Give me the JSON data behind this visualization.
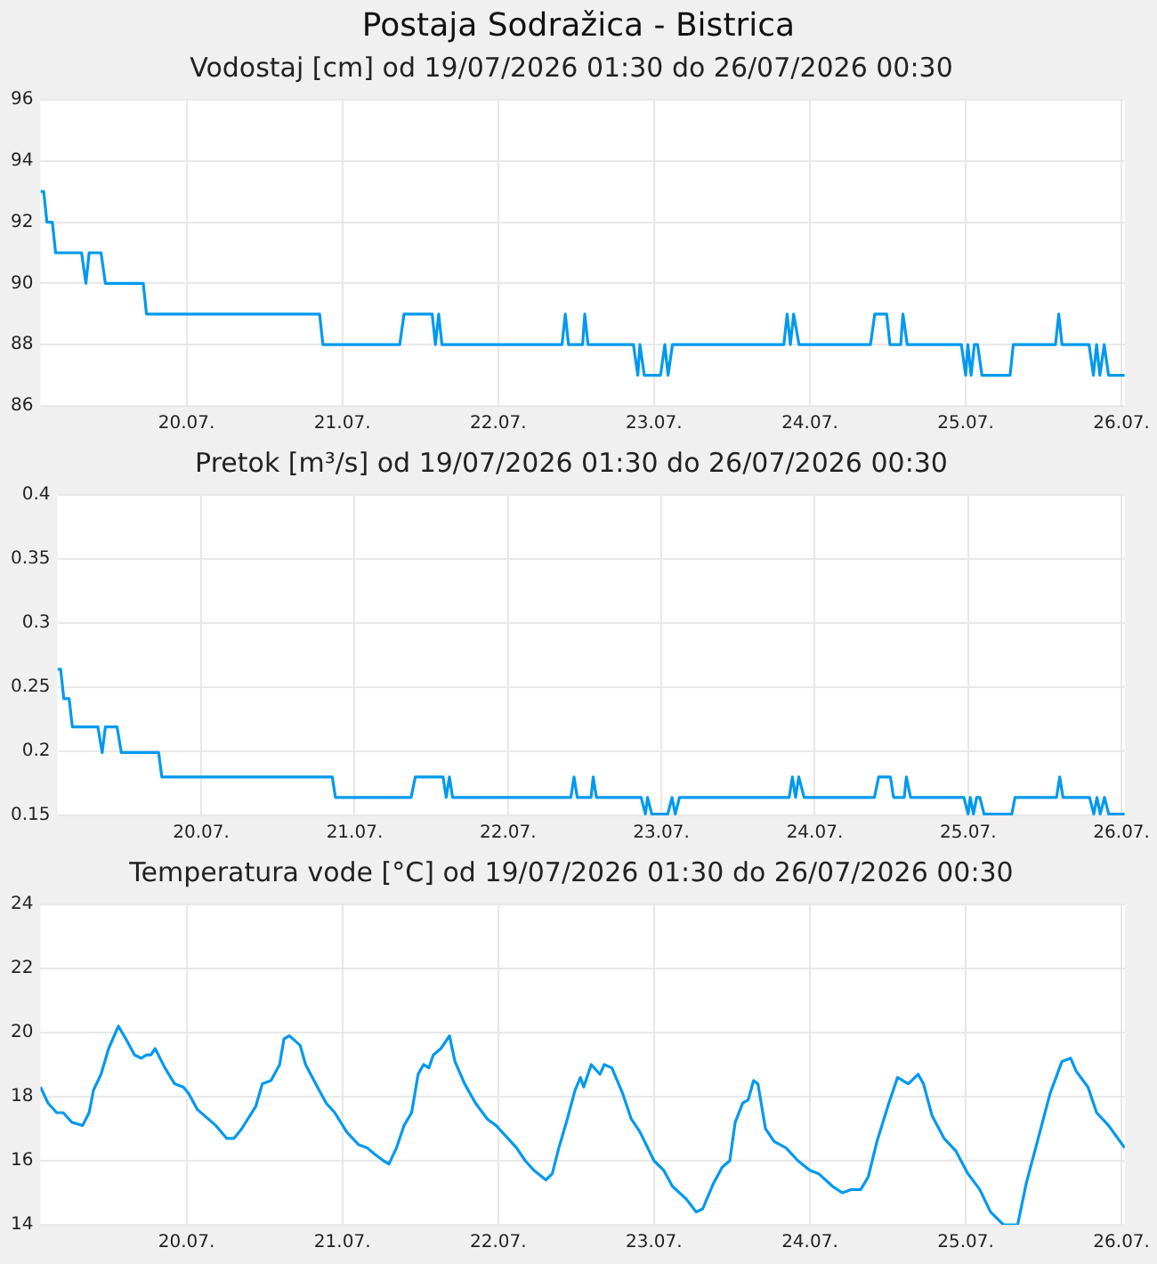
{
  "chart_data": [
    {
      "type": "line",
      "title": "Postaja Sodražica - Bistrica",
      "subtitle": "Vodostaj [cm] od 19/07/2026 01:30 do 26/07/2026 00:30",
      "color": "#0099ee",
      "grid": true,
      "marker": "none",
      "line_style": "solid",
      "x": [
        "2026-07-19T01:30",
        "2026-07-19T02:00",
        "2026-07-19T02:30",
        "2026-07-19T03:20",
        "2026-07-19T03:50",
        "2026-07-19T07:50",
        "2026-07-19T08:30",
        "2026-07-19T09:00",
        "2026-07-19T10:50",
        "2026-07-19T11:30",
        "2026-07-19T17:20",
        "2026-07-19T17:50",
        "2026-07-20T20:30",
        "2026-07-20T21:00",
        "2026-07-21T08:50",
        "2026-07-21T09:30",
        "2026-07-21T13:50",
        "2026-07-21T14:20",
        "2026-07-21T14:50",
        "2026-07-21T15:20",
        "2026-07-22T09:50",
        "2026-07-22T10:20",
        "2026-07-22T10:50",
        "2026-07-22T13:00",
        "2026-07-22T13:20",
        "2026-07-22T13:50",
        "2026-07-22T20:50",
        "2026-07-22T21:30",
        "2026-07-22T21:50",
        "2026-07-22T22:30",
        "2026-07-23T01:00",
        "2026-07-23T01:40",
        "2026-07-23T02:10",
        "2026-07-23T02:50",
        "2026-07-23T20:00",
        "2026-07-23T20:30",
        "2026-07-23T21:00",
        "2026-07-23T21:30",
        "2026-07-23T22:20",
        "2026-07-24T09:20",
        "2026-07-24T10:00",
        "2026-07-24T11:50",
        "2026-07-24T12:20",
        "2026-07-24T14:00",
        "2026-07-24T14:20",
        "2026-07-24T15:00",
        "2026-07-24T23:20",
        "2026-07-25T00:00",
        "2026-07-25T00:20",
        "2026-07-25T00:50",
        "2026-07-25T01:20",
        "2026-07-25T01:50",
        "2026-07-25T02:30",
        "2026-07-25T06:50",
        "2026-07-25T07:20",
        "2026-07-25T13:50",
        "2026-07-25T14:20",
        "2026-07-25T14:50",
        "2026-07-25T19:00",
        "2026-07-25T19:40",
        "2026-07-25T20:10",
        "2026-07-25T20:40",
        "2026-07-25T21:20",
        "2026-07-25T22:00",
        "2026-07-26T00:30"
      ],
      "values": [
        93,
        93,
        92,
        92,
        91,
        91,
        90,
        91,
        91,
        90,
        90,
        89,
        89,
        88,
        88,
        89,
        89,
        88,
        89,
        88,
        88,
        89,
        88,
        88,
        89,
        88,
        88,
        87,
        88,
        87,
        87,
        88,
        87,
        88,
        88,
        89,
        88,
        89,
        88,
        88,
        89,
        89,
        88,
        88,
        89,
        88,
        88,
        87,
        88,
        87,
        88,
        88,
        87,
        87,
        88,
        88,
        89,
        88,
        88,
        87,
        88,
        87,
        88,
        87,
        87
      ],
      "xlim": [
        "2026-07-19T01:30",
        "2026-07-26T00:30"
      ],
      "xticks": [
        {
          "value": "2026-07-20T00:00",
          "label": "20.07."
        },
        {
          "value": "2026-07-21T00:00",
          "label": "21.07."
        },
        {
          "value": "2026-07-22T00:00",
          "label": "22.07."
        },
        {
          "value": "2026-07-23T00:00",
          "label": "23.07."
        },
        {
          "value": "2026-07-24T00:00",
          "label": "24.07."
        },
        {
          "value": "2026-07-25T00:00",
          "label": "25.07."
        },
        {
          "value": "2026-07-26T00:00",
          "label": "26.07."
        }
      ],
      "ylim": [
        86,
        96
      ],
      "yticks": [
        86,
        88,
        90,
        92,
        94,
        96
      ]
    },
    {
      "type": "line",
      "title": "Pretok [m³/s] od 19/07/2026 01:30 do 26/07/2026 00:30",
      "color": "#0099ee",
      "grid": true,
      "marker": "none",
      "line_style": "solid",
      "x": [
        "2026-07-19T01:30",
        "2026-07-19T02:00",
        "2026-07-19T02:30",
        "2026-07-19T03:20",
        "2026-07-19T03:50",
        "2026-07-19T07:50",
        "2026-07-19T08:30",
        "2026-07-19T09:00",
        "2026-07-19T10:50",
        "2026-07-19T11:30",
        "2026-07-19T17:20",
        "2026-07-19T17:50",
        "2026-07-20T20:30",
        "2026-07-20T21:00",
        "2026-07-21T08:50",
        "2026-07-21T09:30",
        "2026-07-21T13:50",
        "2026-07-21T14:20",
        "2026-07-21T14:50",
        "2026-07-21T15:20",
        "2026-07-22T09:50",
        "2026-07-22T10:20",
        "2026-07-22T10:50",
        "2026-07-22T13:00",
        "2026-07-22T13:20",
        "2026-07-22T13:50",
        "2026-07-22T20:50",
        "2026-07-22T21:30",
        "2026-07-22T21:50",
        "2026-07-22T22:30",
        "2026-07-23T01:00",
        "2026-07-23T01:40",
        "2026-07-23T02:10",
        "2026-07-23T02:50",
        "2026-07-23T20:00",
        "2026-07-23T20:30",
        "2026-07-23T21:00",
        "2026-07-23T21:30",
        "2026-07-23T22:20",
        "2026-07-24T09:20",
        "2026-07-24T10:00",
        "2026-07-24T11:50",
        "2026-07-24T12:20",
        "2026-07-24T14:00",
        "2026-07-24T14:20",
        "2026-07-24T15:00",
        "2026-07-24T23:20",
        "2026-07-25T00:00",
        "2026-07-25T00:20",
        "2026-07-25T00:50",
        "2026-07-25T01:20",
        "2026-07-25T01:50",
        "2026-07-25T02:30",
        "2026-07-25T06:50",
        "2026-07-25T07:20",
        "2026-07-25T13:50",
        "2026-07-25T14:20",
        "2026-07-25T14:50",
        "2026-07-25T19:00",
        "2026-07-25T19:40",
        "2026-07-25T20:10",
        "2026-07-25T20:40",
        "2026-07-25T21:20",
        "2026-07-25T22:00",
        "2026-07-26T00:30"
      ],
      "values": [
        0.264,
        0.264,
        0.241,
        0.241,
        0.219,
        0.219,
        0.199,
        0.219,
        0.219,
        0.199,
        0.199,
        0.18,
        0.18,
        0.164,
        0.164,
        0.18,
        0.18,
        0.164,
        0.18,
        0.164,
        0.164,
        0.18,
        0.164,
        0.164,
        0.18,
        0.164,
        0.164,
        0.151,
        0.164,
        0.151,
        0.151,
        0.164,
        0.151,
        0.164,
        0.164,
        0.18,
        0.164,
        0.18,
        0.164,
        0.164,
        0.18,
        0.18,
        0.164,
        0.164,
        0.18,
        0.164,
        0.164,
        0.151,
        0.164,
        0.151,
        0.164,
        0.164,
        0.151,
        0.151,
        0.164,
        0.164,
        0.18,
        0.164,
        0.164,
        0.151,
        0.164,
        0.151,
        0.164,
        0.151,
        0.151
      ],
      "xlim": [
        "2026-07-19T01:30",
        "2026-07-26T00:30"
      ],
      "xticks": [
        {
          "value": "2026-07-20T00:00",
          "label": "20.07."
        },
        {
          "value": "2026-07-21T00:00",
          "label": "21.07."
        },
        {
          "value": "2026-07-22T00:00",
          "label": "22.07."
        },
        {
          "value": "2026-07-23T00:00",
          "label": "23.07."
        },
        {
          "value": "2026-07-24T00:00",
          "label": "24.07."
        },
        {
          "value": "2026-07-25T00:00",
          "label": "25.07."
        },
        {
          "value": "2026-07-26T00:00",
          "label": "26.07."
        }
      ],
      "ylim": [
        0.15,
        0.4
      ],
      "yticks": [
        0.15,
        0.2,
        0.25,
        0.3,
        0.35,
        0.4
      ]
    },
    {
      "type": "line",
      "title": "Temperatura vode [°C] od 19/07/2026 01:30 do 26/07/2026 00:30",
      "color": "#0099ee",
      "grid": true,
      "marker": "none",
      "line_style": "solid",
      "x": [
        "2026-07-19T01:30",
        "2026-07-19T02:40",
        "2026-07-19T04:00",
        "2026-07-19T05:00",
        "2026-07-19T06:20",
        "2026-07-19T08:00",
        "2026-07-19T09:00",
        "2026-07-19T09:40",
        "2026-07-19T10:50",
        "2026-07-19T12:00",
        "2026-07-19T13:30",
        "2026-07-19T14:40",
        "2026-07-19T16:00",
        "2026-07-19T17:00",
        "2026-07-19T17:50",
        "2026-07-19T18:30",
        "2026-07-19T19:10",
        "2026-07-19T20:40",
        "2026-07-19T22:10",
        "2026-07-19T23:30",
        "2026-07-20T00:20",
        "2026-07-20T01:40",
        "2026-07-20T04:30",
        "2026-07-20T06:10",
        "2026-07-20T07:20",
        "2026-07-20T08:30",
        "2026-07-20T10:40",
        "2026-07-20T11:40",
        "2026-07-20T13:00",
        "2026-07-20T14:20",
        "2026-07-20T15:00",
        "2026-07-20T15:50",
        "2026-07-20T17:30",
        "2026-07-20T18:20",
        "2026-07-20T20:10",
        "2026-07-20T21:30",
        "2026-07-20T22:50",
        "2026-07-21T00:40",
        "2026-07-21T02:30",
        "2026-07-21T03:50",
        "2026-07-21T05:00",
        "2026-07-21T06:20",
        "2026-07-21T07:10",
        "2026-07-21T08:20",
        "2026-07-21T09:30",
        "2026-07-21T10:40",
        "2026-07-21T11:40",
        "2026-07-21T12:30",
        "2026-07-21T13:20",
        "2026-07-21T14:00",
        "2026-07-21T15:10",
        "2026-07-21T16:30",
        "2026-07-21T17:20",
        "2026-07-21T18:50",
        "2026-07-21T20:30",
        "2026-07-21T22:20",
        "2026-07-21T23:40",
        "2026-07-22T01:30",
        "2026-07-22T02:50",
        "2026-07-22T04:10",
        "2026-07-22T05:30",
        "2026-07-22T07:20",
        "2026-07-22T08:20",
        "2026-07-22T09:20",
        "2026-07-22T10:30",
        "2026-07-22T11:50",
        "2026-07-22T12:40",
        "2026-07-22T13:10",
        "2026-07-22T14:20",
        "2026-07-22T15:40",
        "2026-07-22T16:20",
        "2026-07-22T17:30",
        "2026-07-22T19:10",
        "2026-07-22T20:30",
        "2026-07-22T21:50",
        "2026-07-23T00:00",
        "2026-07-23T01:30",
        "2026-07-23T02:50",
        "2026-07-23T05:00",
        "2026-07-23T06:30",
        "2026-07-23T07:30",
        "2026-07-23T09:10",
        "2026-07-23T10:30",
        "2026-07-23T11:40",
        "2026-07-23T12:30",
        "2026-07-23T13:40",
        "2026-07-23T14:30",
        "2026-07-23T15:20",
        "2026-07-23T16:00",
        "2026-07-23T17:10",
        "2026-07-23T18:30",
        "2026-07-23T20:20",
        "2026-07-23T22:10",
        "2026-07-24T00:00",
        "2026-07-24T01:20",
        "2026-07-24T03:30",
        "2026-07-24T05:00",
        "2026-07-24T06:20",
        "2026-07-24T07:50",
        "2026-07-24T09:00",
        "2026-07-24T10:20",
        "2026-07-24T12:10",
        "2026-07-24T13:30",
        "2026-07-24T15:10",
        "2026-07-24T16:40",
        "2026-07-24T17:30",
        "2026-07-24T18:50",
        "2026-07-24T20:40",
        "2026-07-24T22:30",
        "2026-07-25T00:20",
        "2026-07-25T02:10",
        "2026-07-25T03:50",
        "2026-07-25T05:50",
        "2026-07-25T08:00",
        "2026-07-25T09:20",
        "2026-07-25T11:10",
        "2026-07-25T13:00",
        "2026-07-25T14:50",
        "2026-07-25T16:10",
        "2026-07-25T17:00",
        "2026-07-25T18:50",
        "2026-07-25T20:10",
        "2026-07-25T22:00",
        "2026-07-26T00:30"
      ],
      "values": [
        18.3,
        17.8,
        17.5,
        17.5,
        17.2,
        17.1,
        17.5,
        18.2,
        18.7,
        19.5,
        20.2,
        19.8,
        19.3,
        19.2,
        19.3,
        19.3,
        19.5,
        18.9,
        18.4,
        18.3,
        18.1,
        17.6,
        17.1,
        16.7,
        16.7,
        17.0,
        17.7,
        18.4,
        18.5,
        19.0,
        19.8,
        19.9,
        19.6,
        19.0,
        18.3,
        17.8,
        17.5,
        16.9,
        16.5,
        16.4,
        16.2,
        16.0,
        15.9,
        16.4,
        17.1,
        17.5,
        18.7,
        19.0,
        18.9,
        19.3,
        19.5,
        19.9,
        19.1,
        18.4,
        17.8,
        17.3,
        17.1,
        16.7,
        16.4,
        16.0,
        15.7,
        15.4,
        15.6,
        16.4,
        17.2,
        18.2,
        18.6,
        18.3,
        19.0,
        18.7,
        19.0,
        18.9,
        18.1,
        17.3,
        16.9,
        16.0,
        15.7,
        15.2,
        14.8,
        14.4,
        14.5,
        15.3,
        15.8,
        16.0,
        17.2,
        17.8,
        17.9,
        18.5,
        18.4,
        17.0,
        16.6,
        16.4,
        16.0,
        15.7,
        15.6,
        15.2,
        15.0,
        15.1,
        15.1,
        15.5,
        16.6,
        17.8,
        18.6,
        18.4,
        18.7,
        18.4,
        17.4,
        16.7,
        16.3,
        15.6,
        15.1,
        14.4,
        14.0,
        14.0,
        15.3,
        16.7,
        18.1,
        19.1,
        19.2,
        18.8,
        18.3,
        17.5,
        17.1,
        16.4
      ],
      "xlim": [
        "2026-07-19T01:30",
        "2026-07-26T00:30"
      ],
      "xticks": [
        {
          "value": "2026-07-20T00:00",
          "label": "20.07."
        },
        {
          "value": "2026-07-21T00:00",
          "label": "21.07."
        },
        {
          "value": "2026-07-22T00:00",
          "label": "22.07."
        },
        {
          "value": "2026-07-23T00:00",
          "label": "23.07."
        },
        {
          "value": "2026-07-24T00:00",
          "label": "24.07."
        },
        {
          "value": "2026-07-25T00:00",
          "label": "25.07."
        },
        {
          "value": "2026-07-26T00:00",
          "label": "26.07."
        }
      ],
      "ylim": [
        14,
        24
      ],
      "yticks": [
        14,
        16,
        18,
        20,
        22,
        24
      ]
    }
  ]
}
